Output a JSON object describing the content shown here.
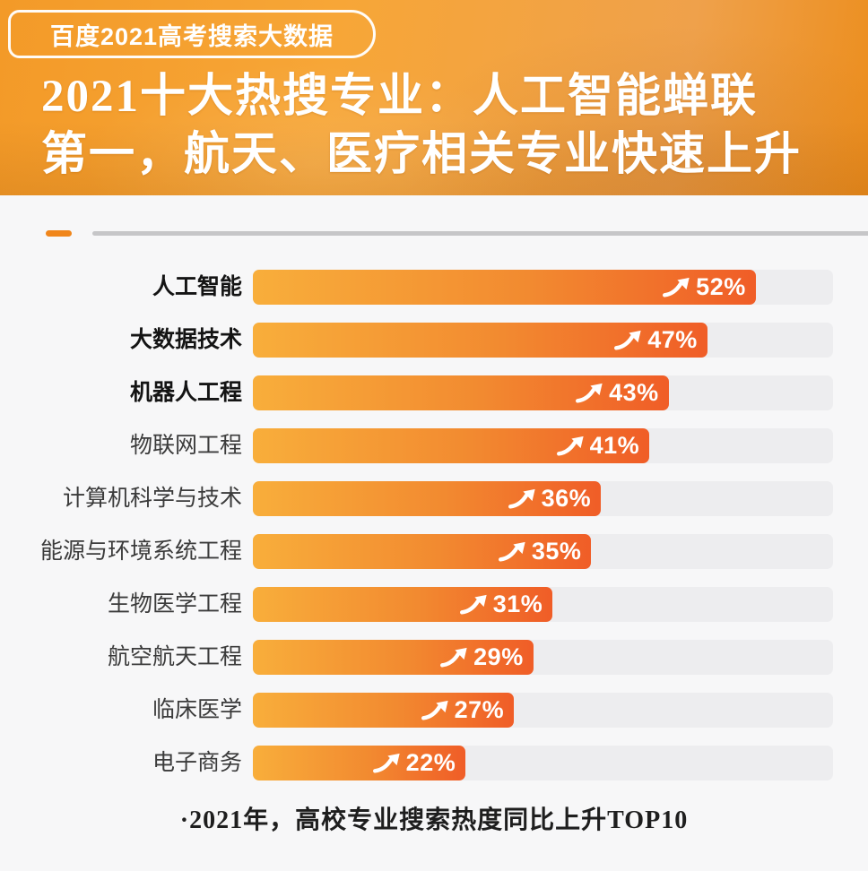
{
  "header": {
    "badge": "百度2021高考搜索大数据",
    "title_line1": "2021十大热搜专业：人工智能蝉联",
    "title_line2": "第一，航天、医疗相关专业快速上升"
  },
  "chart_data": {
    "type": "bar",
    "orientation": "horizontal",
    "title": "2021十大热搜专业：人工智能蝉联第一，航天、医疗相关专业快速上升",
    "categories": [
      "人工智能",
      "大数据技术",
      "机器人工程",
      "物联网工程",
      "计算机科学与技术",
      "能源与环境系统工程",
      "生物医学工程",
      "航空航天工程",
      "临床医学",
      "电子商务"
    ],
    "values": [
      52,
      47,
      43,
      41,
      36,
      35,
      31,
      29,
      27,
      22
    ],
    "unit": "%",
    "bold_category_count": 3,
    "xlim": [
      0,
      60
    ],
    "grid": false,
    "legend": false,
    "value_label_position": "inside-right",
    "trend_icon": "up-arrow",
    "footnote": "·2021年，高校专业搜索热度同比上升TOP10"
  },
  "colors": {
    "page_background": "#F7F7F8",
    "header_gradient_start": "#F7A637",
    "header_gradient_end": "#EC8E1E",
    "bar_gradient_start": "#F8AE3B",
    "bar_gradient_end": "#F05D27",
    "track": "#EDEDEF",
    "divider_dash": "#F0861B",
    "divider_line": "#C6C6C8",
    "label_bold_text": "#141414",
    "label_regular_text": "#3B3B3B",
    "value_text": "#FFFFFF",
    "footnote_text": "#1E1E1E"
  }
}
